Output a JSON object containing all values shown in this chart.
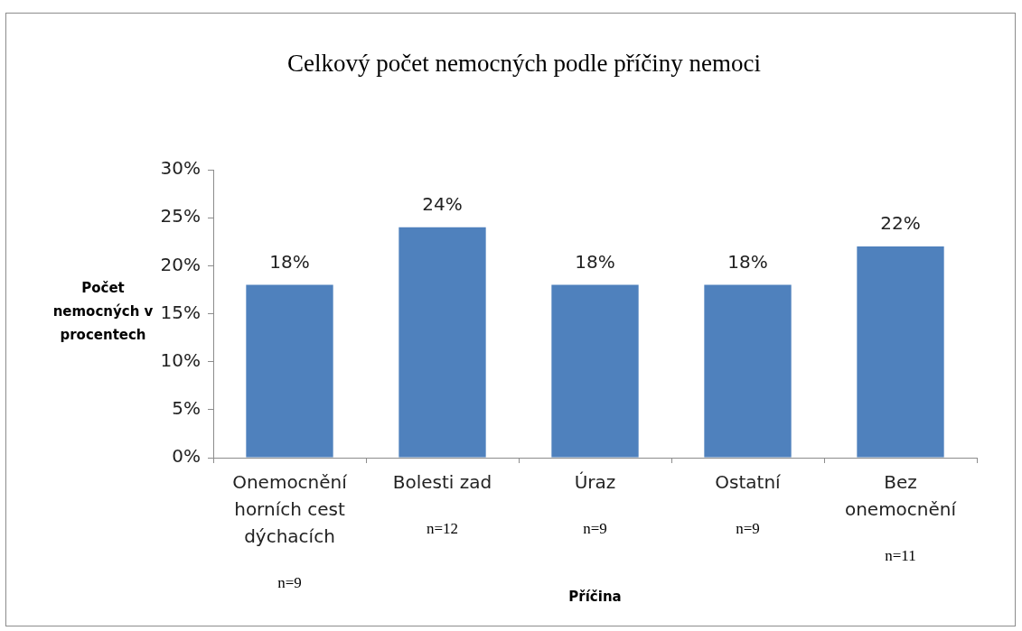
{
  "chart_data": {
    "type": "bar",
    "title": "Celkový počet nemocných podle příčiny nemoci",
    "xlabel": "Příčina",
    "ylabel": "Počet nemocných v procentech",
    "categories": [
      "Onemocnění horních cest dýchacích",
      "Bolesti zad",
      "Úraz",
      "Ostatní",
      "Bez onemocnění"
    ],
    "values": [
      18,
      24,
      18,
      18,
      22
    ],
    "color": "#4f81bd",
    "value_labels": [
      "18%",
      "24%",
      "18%",
      "18%",
      "22%"
    ],
    "ylim": [
      0,
      30
    ],
    "yticks": [
      {
        "value": 0,
        "label": "0%"
      },
      {
        "value": 5,
        "label": "5%"
      },
      {
        "value": 10,
        "label": "10%"
      },
      {
        "value": 15,
        "label": "15%"
      },
      {
        "value": 20,
        "label": "20%"
      },
      {
        "value": 25,
        "label": "25%"
      },
      {
        "value": 30,
        "label": "30%"
      }
    ],
    "annotations": [
      "n=9",
      "n=12",
      "n=9",
      "n=9",
      "n=11"
    ],
    "grid": false,
    "legend": false
  }
}
